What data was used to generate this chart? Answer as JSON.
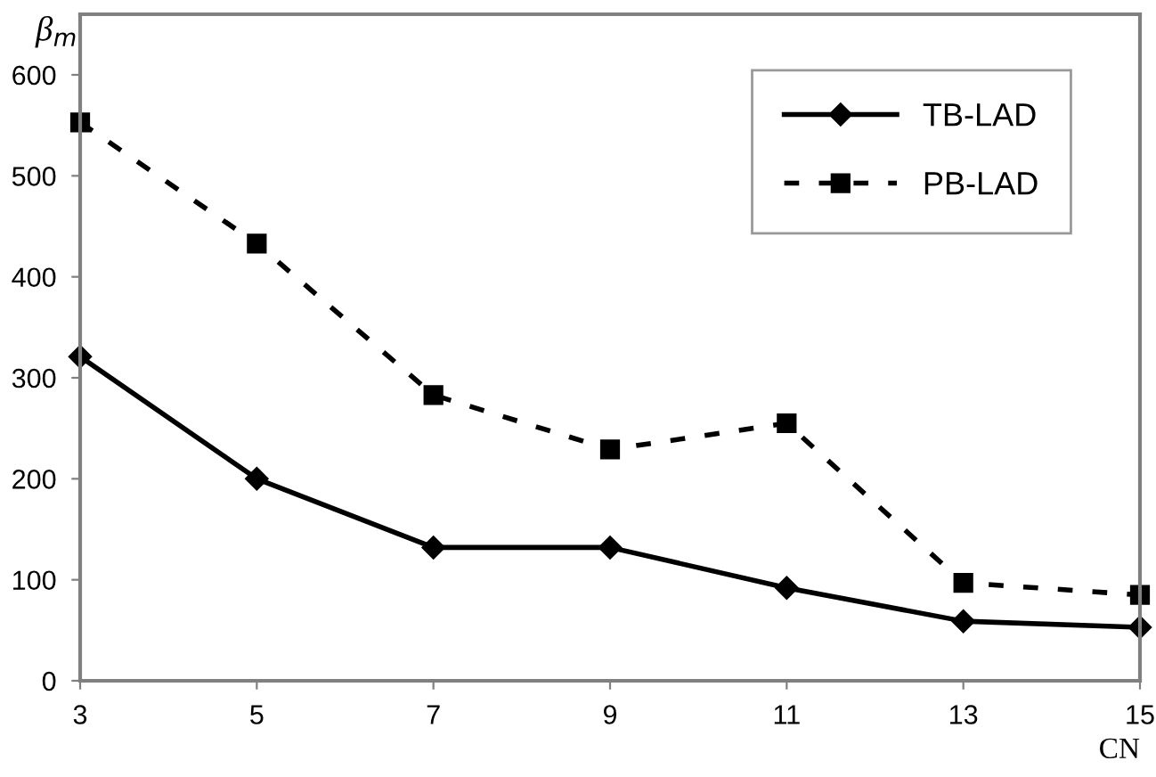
{
  "chart_data": {
    "type": "line",
    "xlabel": "CN",
    "ylabel": "β$_{m}$",
    "x": [
      3,
      5,
      7,
      9,
      11,
      13,
      15
    ],
    "series": [
      {
        "name": "TB-LAD",
        "color": "#000000",
        "marker": "diamond",
        "line_style": "solid",
        "values": [
          321,
          200,
          132,
          132,
          92,
          59,
          53
        ]
      },
      {
        "name": "PB-LAD",
        "color": "#000000",
        "marker": "square",
        "line_style": "dashed",
        "values": [
          553,
          433,
          283,
          229,
          255,
          97,
          85
        ]
      }
    ],
    "xlim": [
      3,
      15
    ],
    "xticks": [
      3,
      5,
      7,
      9,
      11,
      13,
      15
    ],
    "ylim": [
      0,
      660
    ],
    "yticks": [
      0,
      100,
      200,
      300,
      400,
      500,
      600
    ],
    "grid": false,
    "legend": "top right"
  }
}
